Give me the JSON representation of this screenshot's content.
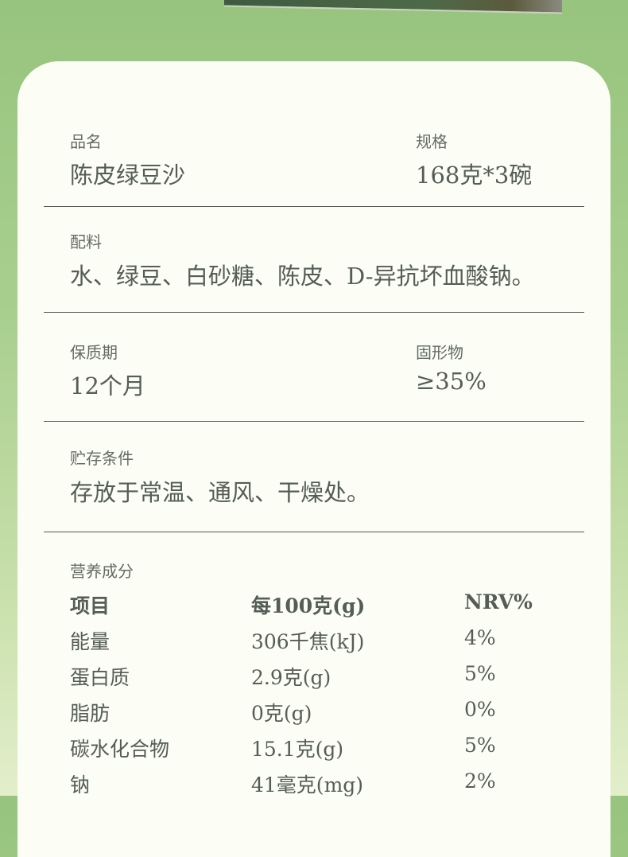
{
  "name": {
    "label": "品名",
    "value": "陈皮绿豆沙"
  },
  "spec": {
    "label": "规格",
    "value": "168克*3碗"
  },
  "ingredients": {
    "label": "配料",
    "value": "水、绿豆、白砂糖、陈皮、D-异抗坏血酸钠。"
  },
  "shelf_life": {
    "label": "保质期",
    "value": "12个月"
  },
  "solids": {
    "label": "固形物",
    "value": "≥35%"
  },
  "storage": {
    "label": "贮存条件",
    "value": "存放于常温、通风、干燥处。"
  },
  "nutrition": {
    "label": "营养成分",
    "headers": [
      "项目",
      "每100克(g)",
      "NRV%"
    ],
    "rows": [
      [
        "能量",
        "306千焦(kJ)",
        "4%"
      ],
      [
        "蛋白质",
        "2.9克(g)",
        "5%"
      ],
      [
        "脂肪",
        "0克(g)",
        "0%"
      ],
      [
        "碳水化合物",
        "15.1克(g)",
        "5%"
      ],
      [
        "钠",
        "41毫克(mg)",
        "2%"
      ]
    ]
  },
  "colors": {
    "background": "#97c47e",
    "card": "#fcfdf4",
    "text": "#545e56"
  }
}
